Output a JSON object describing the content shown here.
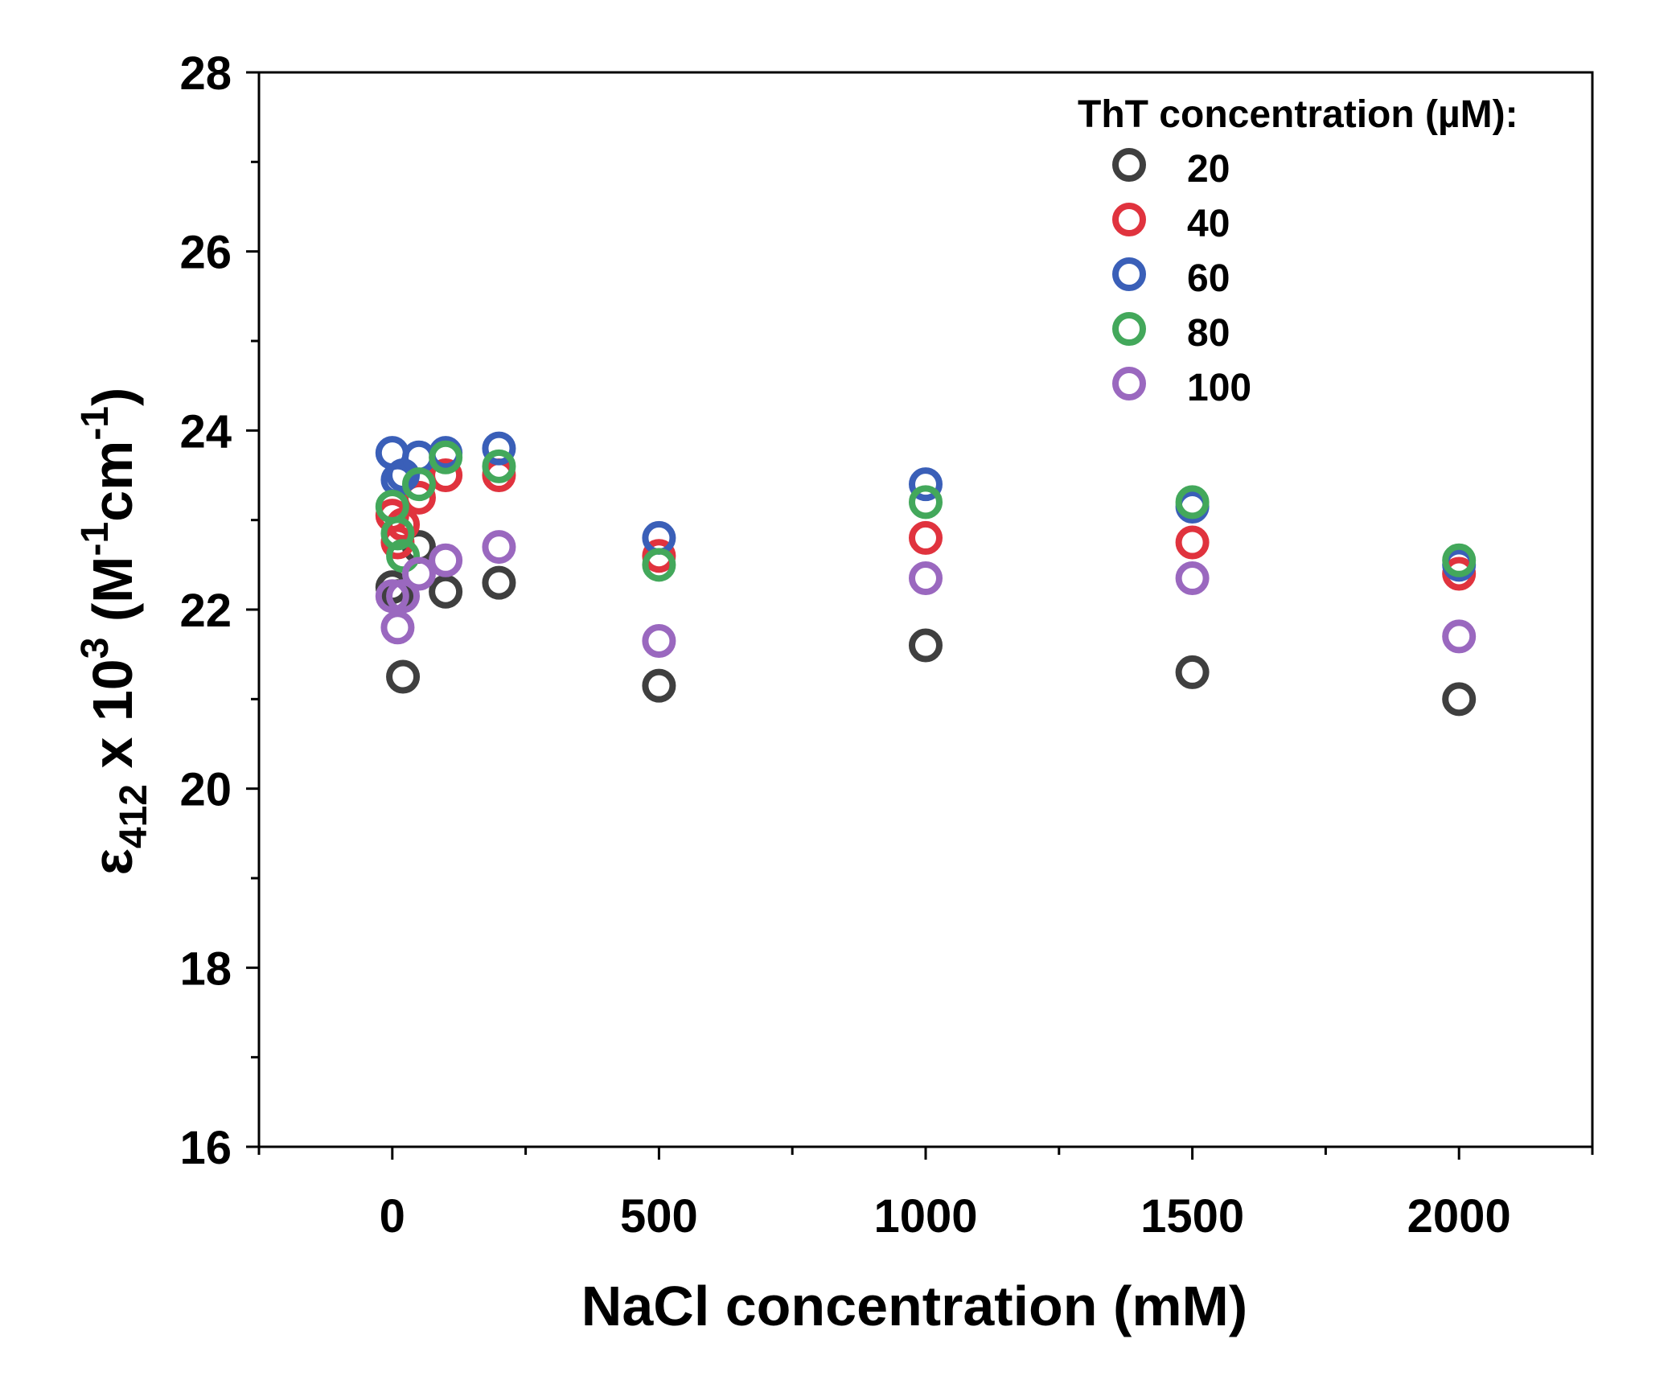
{
  "chart_data": {
    "type": "scatter",
    "xlabel": "NaCl concentration (mM)",
    "ylabel": {
      "symbol": "ε",
      "subscript": "412",
      "mid": " x 10",
      "superscript": "3",
      "unit_open": " (M",
      "unit_sup1": "-1",
      "unit_mid": "cm",
      "unit_sup2": "-1",
      "unit_close": ")"
    },
    "xlim": [
      -250,
      2250
    ],
    "ylim": [
      16,
      28
    ],
    "x_ticks": [
      0,
      500,
      1000,
      1500,
      2000
    ],
    "x_tick_labels": [
      "0",
      "500",
      "1000",
      "1500",
      "2000"
    ],
    "x_minor_ticks": [
      -250,
      250,
      750,
      1250,
      1750,
      2250
    ],
    "y_ticks": [
      16,
      18,
      20,
      22,
      24,
      26,
      28
    ],
    "y_tick_labels": [
      "16",
      "18",
      "20",
      "22",
      "24",
      "26",
      "28"
    ],
    "y_minor_ticks": [
      17,
      19,
      21,
      23,
      25,
      27
    ],
    "grid": false,
    "legend": {
      "title": "ThT concentration (µM):",
      "placement": "top-right"
    },
    "series": [
      {
        "name": "20",
        "color": "#3f3f3f",
        "x": [
          0,
          10,
          20,
          50,
          100,
          200,
          500,
          1000,
          1500,
          2000
        ],
        "y": [
          22.25,
          22.15,
          21.25,
          22.7,
          22.2,
          22.3,
          21.15,
          21.6,
          21.3,
          21.0
        ]
      },
      {
        "name": "40",
        "color": "#e0333e",
        "x": [
          0,
          10,
          20,
          50,
          100,
          200,
          500,
          1000,
          1500,
          2000
        ],
        "y": [
          23.05,
          22.75,
          22.95,
          23.25,
          23.5,
          23.5,
          22.6,
          22.8,
          22.75,
          22.4
        ]
      },
      {
        "name": "60",
        "color": "#3a5fb8",
        "x": [
          0,
          10,
          20,
          50,
          100,
          200,
          500,
          1000,
          1500,
          2000
        ],
        "y": [
          23.75,
          23.45,
          23.5,
          23.7,
          23.75,
          23.8,
          22.8,
          23.4,
          23.15,
          22.5
        ]
      },
      {
        "name": "80",
        "color": "#43a85b",
        "x": [
          0,
          10,
          20,
          50,
          100,
          200,
          500,
          1000,
          1500,
          2000
        ],
        "y": [
          23.15,
          22.85,
          22.6,
          23.4,
          23.7,
          23.6,
          22.5,
          23.2,
          23.2,
          22.55
        ]
      },
      {
        "name": "100",
        "color": "#9a68bf",
        "x": [
          0,
          10,
          20,
          50,
          100,
          200,
          500,
          1000,
          1500,
          2000
        ],
        "y": [
          22.15,
          21.8,
          22.15,
          22.4,
          22.55,
          22.7,
          21.65,
          22.35,
          22.35,
          21.7
        ]
      }
    ]
  }
}
